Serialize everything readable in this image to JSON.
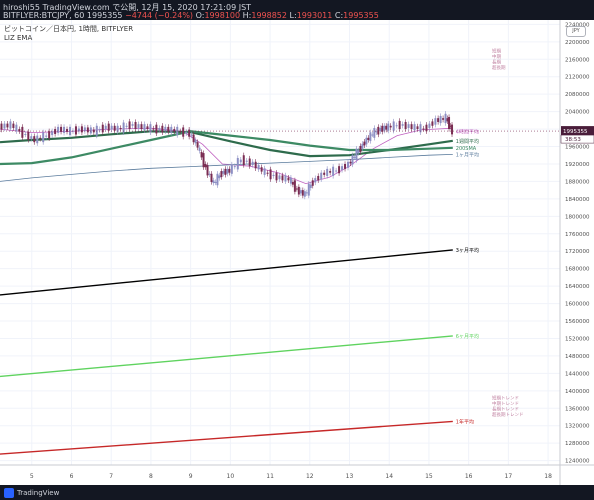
{
  "header": {
    "line1": "hiroshi55 TradingView.com で公開, 12月 15, 2020 17:21:09 JST",
    "symbol": "BITFLYER:BTCJPY, 60",
    "price": "1995355",
    "change": "−4744 (−0.24%)",
    "o_label": "O:",
    "o": "1998100",
    "h_label": "H:",
    "h": "1998852",
    "l_label": "L:",
    "l": "1993011",
    "c_label": "C:",
    "c": "1995355"
  },
  "legend": {
    "title": "ビットコイン／日本円, 1時間, BITFLYER",
    "indicator": "LIZ EMA"
  },
  "footer": {
    "logo_text": "TradingView"
  },
  "currency_badge": "JPY",
  "chart_data": {
    "type": "line",
    "y_ticks": [
      2240000,
      2200000,
      2160000,
      2120000,
      2080000,
      2040000,
      2000000,
      1960000,
      1920000,
      1880000,
      1840000,
      1800000,
      1760000,
      1720000,
      1680000,
      1640000,
      1600000,
      1560000,
      1520000,
      1480000,
      1440000,
      1400000,
      1360000,
      1320000,
      1280000,
      1240000
    ],
    "ylim": [
      1230000,
      2250000
    ],
    "x_ticks": [
      5,
      6,
      7,
      8,
      9,
      10,
      11,
      12,
      13,
      14,
      15,
      16,
      17,
      18
    ],
    "xlim": [
      4.2,
      18.3
    ],
    "current_price": {
      "value": 1995355,
      "label": "1995355",
      "countdown": "38:53"
    },
    "price_series": {
      "name": "BTCJPY",
      "x": [
        4.2,
        4.5,
        4.8,
        5.1,
        5.4,
        5.7,
        6.0,
        6.3,
        6.6,
        6.9,
        7.2,
        7.5,
        7.8,
        8.1,
        8.4,
        8.7,
        9.0,
        9.2,
        9.4,
        9.6,
        9.8,
        10.0,
        10.3,
        10.6,
        10.9,
        11.2,
        11.5,
        11.7,
        11.9,
        12.1,
        12.4,
        12.7,
        13.0,
        13.2,
        13.4,
        13.6,
        13.8,
        14.0,
        14.3,
        14.6,
        14.9,
        15.2,
        15.45,
        15.6
      ],
      "values": [
        2005000,
        2010000,
        1990000,
        1975000,
        1985000,
        2000000,
        1995000,
        2000000,
        1995000,
        2005000,
        2000000,
        2010000,
        2005000,
        2000000,
        2000000,
        1995000,
        1990000,
        1960000,
        1910000,
        1875000,
        1900000,
        1905000,
        1930000,
        1920000,
        1900000,
        1890000,
        1885000,
        1860000,
        1850000,
        1880000,
        1900000,
        1905000,
        1920000,
        1945000,
        1970000,
        1990000,
        2000000,
        2005000,
        2010000,
        2005000,
        2000000,
        2020000,
        2025000,
        1995355
      ]
    },
    "series": [
      {
        "name": "4時間平均",
        "color": "#c060c0",
        "label_at": 1995000,
        "x": [
          4.2,
          5.0,
          6.0,
          7.0,
          8.0,
          8.8,
          9.3,
          9.8,
          10.5,
          11.2,
          11.9,
          12.5,
          13.0,
          13.6,
          14.2,
          14.8,
          15.6
        ],
        "values": [
          2000000,
          1992000,
          1995000,
          2000000,
          2002000,
          1995000,
          1965000,
          1920000,
          1915000,
          1900000,
          1875000,
          1890000,
          1915000,
          1955000,
          1985000,
          1998000,
          2002000
        ]
      },
      {
        "name": "1週間平均",
        "color": "#2e6b4c",
        "label_at": 1973000,
        "x": [
          4.2,
          5.0,
          6.0,
          7.0,
          8.0,
          9.0,
          10.0,
          11.0,
          12.0,
          13.0,
          14.0,
          15.0,
          15.6
        ],
        "values": [
          1970000,
          1975000,
          1980000,
          1988000,
          1995000,
          1993000,
          1972000,
          1952000,
          1938000,
          1940000,
          1952000,
          1965000,
          1973000
        ]
      },
      {
        "name": "200SMA",
        "color": "#3d8a64",
        "label_at": 1957000,
        "x": [
          4.2,
          5.0,
          6.0,
          7.0,
          8.0,
          9.0,
          10.0,
          11.0,
          12.0,
          13.0,
          14.0,
          15.0,
          15.6
        ],
        "values": [
          1920000,
          1922000,
          1935000,
          1955000,
          1975000,
          1995000,
          1985000,
          1975000,
          1962000,
          1952000,
          1952000,
          1955000,
          1957000
        ]
      },
      {
        "name": "1ヶ月平均",
        "color": "#5a7b9c",
        "label_at": 1942000,
        "x": [
          4.2,
          5.0,
          6.0,
          7.0,
          8.0,
          9.0,
          10.0,
          11.0,
          12.0,
          13.0,
          14.0,
          15.0,
          15.6
        ],
        "values": [
          1880000,
          1888000,
          1896000,
          1904000,
          1910000,
          1914000,
          1918000,
          1922000,
          1926000,
          1930000,
          1935000,
          1940000,
          1942000
        ]
      },
      {
        "name": "3ヶ月平均",
        "color": "#000000",
        "label_at": 1723000,
        "x": [
          4.2,
          15.6
        ],
        "values": [
          1620000,
          1723000
        ]
      },
      {
        "name": "6ヶ月平均",
        "color": "#5fd35f",
        "label_at": 1526000,
        "x": [
          4.2,
          15.6
        ],
        "values": [
          1433000,
          1526000
        ]
      },
      {
        "name": "1年平均",
        "color": "#c62828",
        "label_at": 1330000,
        "x": [
          4.2,
          15.6
        ],
        "values": [
          1255000,
          1330000
        ]
      }
    ],
    "upper_legend": {
      "lines": [
        "短期",
        "中期",
        "長期",
        "超長期"
      ],
      "at_value": 2175000,
      "color": "#c080a0"
    },
    "lower_legend": {
      "lines": [
        "短期トレンド",
        "中期トレンド",
        "長期トレンド",
        "超長期トレンド"
      ],
      "at_value": 1380000,
      "color": "#c080a0"
    }
  }
}
